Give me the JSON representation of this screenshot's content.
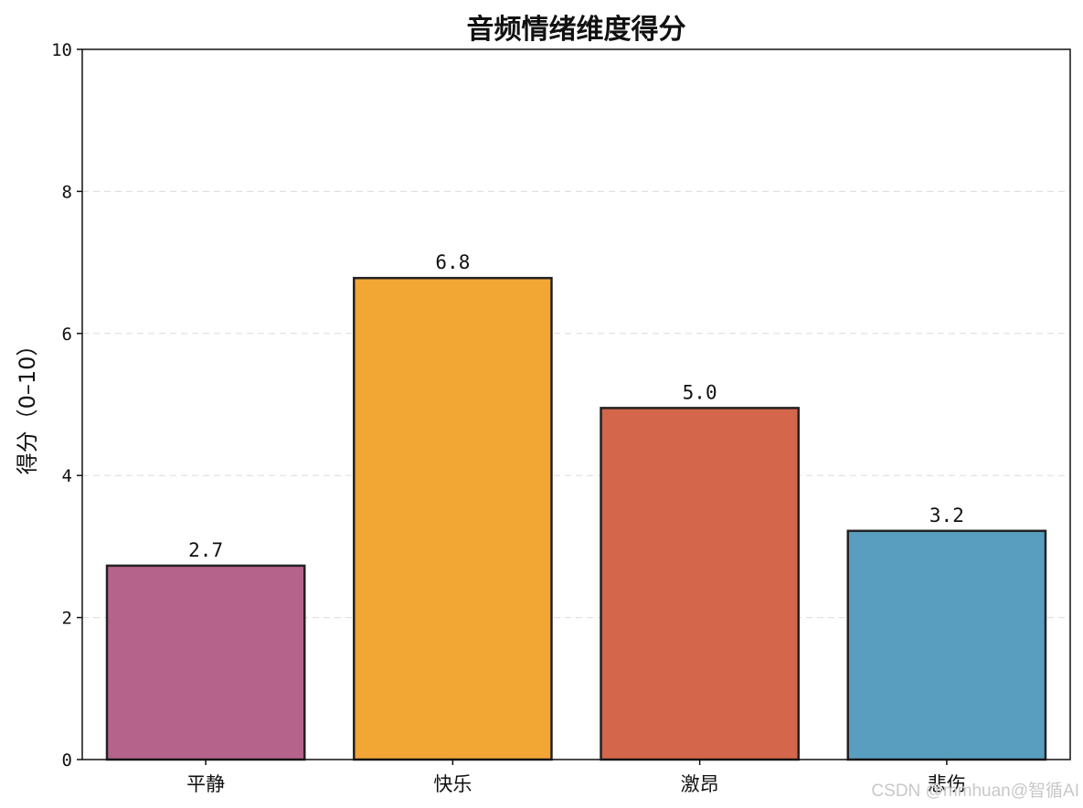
{
  "chart_data": {
    "type": "bar",
    "title": "音频情绪维度得分",
    "xlabel": "",
    "ylabel": "得分（0–10）",
    "ylim": [
      0,
      10
    ],
    "yticks": [
      0,
      2,
      4,
      6,
      8,
      10
    ],
    "grid": true,
    "categories": [
      "平静",
      "快乐",
      "激昂",
      "悲伤"
    ],
    "values": [
      2.73,
      6.78,
      4.95,
      3.22
    ],
    "value_labels": [
      "2.7",
      "6.8",
      "5.0",
      "3.2"
    ],
    "colors": [
      "#b5638b",
      "#f2a634",
      "#d4664b",
      "#5a9ebf"
    ],
    "edge_color": "#222222"
  },
  "watermark": "CSDN @mmhuan@智循AI"
}
